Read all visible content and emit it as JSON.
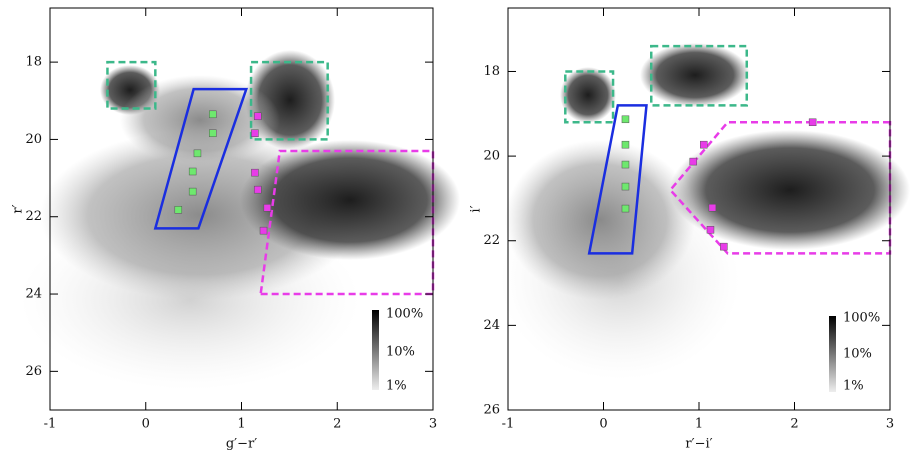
{
  "chart_data": [
    {
      "type": "density",
      "xlabel": "g′−r′",
      "ylabel": "r′",
      "xlim": [
        -1,
        3
      ],
      "ylim": [
        27,
        16.6
      ],
      "xticks": [
        -1,
        0,
        1,
        2,
        3
      ],
      "yticks": [
        18,
        20,
        22,
        24,
        26
      ],
      "colorbar_labels": [
        "100%",
        "10%",
        "1%"
      ],
      "regions": [
        {
          "color": "#3cb88a",
          "dashed": true,
          "x": [
            -0.4,
            0.1,
            0.1,
            -0.4
          ],
          "y": [
            18,
            18,
            19.2,
            19.2
          ]
        },
        {
          "color": "#3cb88a",
          "dashed": true,
          "x": [
            1.1,
            1.9,
            1.9,
            1.1
          ],
          "y": [
            18,
            18,
            20,
            20
          ]
        },
        {
          "color": "#1a2ee0",
          "dashed": false,
          "x": [
            0.1,
            0.55,
            1.05,
            0.5
          ],
          "y": [
            22.3,
            22.3,
            18.7,
            18.7
          ]
        },
        {
          "color": "#e83ce8",
          "dashed": true,
          "x": [
            1.2,
            3,
            3,
            1.4
          ],
          "y": [
            24,
            24,
            20.3,
            20.3
          ]
        }
      ],
      "markers": [
        {
          "color": "#6ee86e",
          "x": [
            0.7,
            0.7,
            0.54,
            0.49,
            0.49,
            0.34
          ],
          "y": [
            19.35,
            19.84,
            20.36,
            20.83,
            21.35,
            21.82
          ]
        },
        {
          "color": "#e83ce8",
          "x": [
            1.17,
            1.14,
            1.14,
            1.17,
            1.27,
            1.23
          ],
          "y": [
            19.4,
            19.84,
            20.86,
            21.3,
            21.77,
            22.36
          ]
        }
      ]
    },
    {
      "type": "density",
      "xlabel": "r′−i′",
      "ylabel": "i′",
      "xlim": [
        -1,
        3
      ],
      "ylim": [
        26,
        16.5
      ],
      "xticks": [
        -1,
        0,
        1,
        2,
        3
      ],
      "yticks": [
        18,
        20,
        22,
        24,
        26
      ],
      "colorbar_labels": [
        "100%",
        "10%",
        "1%"
      ],
      "regions": [
        {
          "color": "#3cb88a",
          "dashed": true,
          "x": [
            -0.4,
            0.1,
            0.1,
            -0.4
          ],
          "y": [
            18,
            18,
            19.2,
            19.2
          ]
        },
        {
          "color": "#3cb88a",
          "dashed": true,
          "x": [
            0.5,
            1.5,
            1.5,
            0.5
          ],
          "y": [
            17.4,
            17.4,
            18.8,
            18.8
          ]
        },
        {
          "color": "#1a2ee0",
          "dashed": false,
          "x": [
            -0.15,
            0.3,
            0.45,
            0.15
          ],
          "y": [
            22.3,
            22.3,
            18.8,
            18.8
          ]
        },
        {
          "color": "#e83ce8",
          "dashed": true,
          "x": [
            3,
            1.3,
            0.7,
            1.3,
            3
          ],
          "y": [
            19.2,
            19.2,
            20.8,
            22.3,
            22.3
          ]
        }
      ],
      "markers": [
        {
          "color": "#6ee86e",
          "x": [
            0.23,
            0.23,
            0.23,
            0.23,
            0.23
          ],
          "y": [
            19.13,
            19.73,
            20.2,
            20.72,
            21.24
          ]
        },
        {
          "color": "#e83ce8",
          "x": [
            0.94,
            1.05,
            1.14,
            1.12,
            1.26,
            2.19
          ],
          "y": [
            20.13,
            19.73,
            21.22,
            21.74,
            22.14,
            19.2
          ]
        }
      ]
    }
  ]
}
